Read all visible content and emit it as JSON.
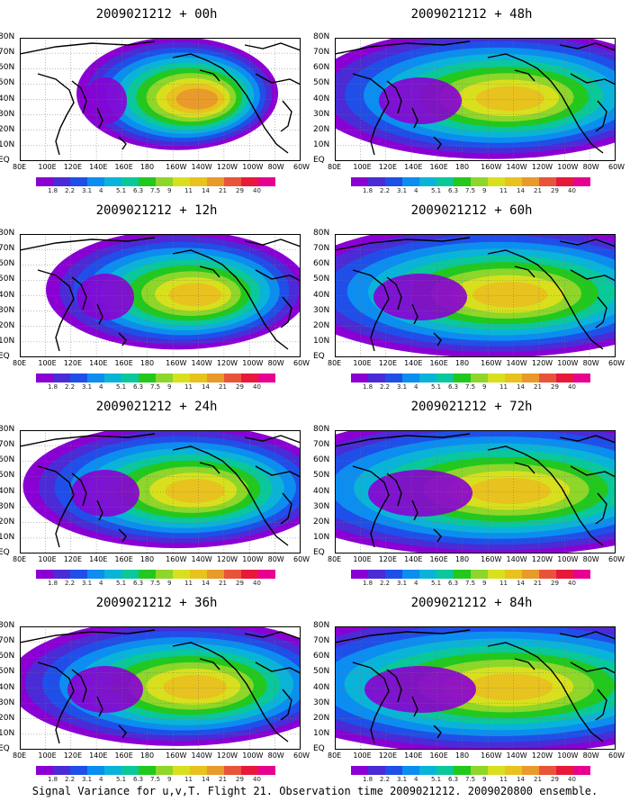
{
  "footer": "Signal Variance for u,v,T. Flight 21. Observation time 2009021212. 2009020800 ensemble.",
  "lat_labels": [
    "80N",
    "70N",
    "60N",
    "50N",
    "40N",
    "30N",
    "20N",
    "10N",
    "EQ"
  ],
  "lon_labels": [
    "80E",
    "100E",
    "120E",
    "140E",
    "160E",
    "180",
    "160W",
    "140W",
    "120W",
    "100W",
    "80W",
    "60W"
  ],
  "colorbar": {
    "labels": [
      "1.8",
      "2.2",
      "3.1",
      "4",
      "5.1",
      "6.3",
      "7.5",
      "9",
      "11",
      "14",
      "21",
      "29",
      "40"
    ],
    "colors": [
      "#8a00d4",
      "#4a2bd6",
      "#1f4fe8",
      "#0b8ef0",
      "#0ab4d8",
      "#0ac89a",
      "#22c81e",
      "#8ed62a",
      "#d8e01e",
      "#e8c21e",
      "#e89a2a",
      "#e8543a",
      "#e8183a",
      "#e80090"
    ]
  },
  "panels": [
    {
      "title": "2009021212 + 00h",
      "max_level": 10,
      "spread": 0.6
    },
    {
      "title": "2009021212 + 48h",
      "max_level": 9,
      "spread": 1.15
    },
    {
      "title": "2009021212 + 12h",
      "max_level": 9,
      "spread": 0.8
    },
    {
      "title": "2009021212 + 60h",
      "max_level": 9,
      "spread": 1.3
    },
    {
      "title": "2009021212 + 24h",
      "max_level": 9,
      "spread": 0.95
    },
    {
      "title": "2009021212 + 72h",
      "max_level": 9,
      "spread": 1.45
    },
    {
      "title": "2009021212 + 36h",
      "max_level": 9,
      "spread": 1.05
    },
    {
      "title": "2009021212 + 84h",
      "max_level": 9,
      "spread": 1.55
    }
  ]
}
